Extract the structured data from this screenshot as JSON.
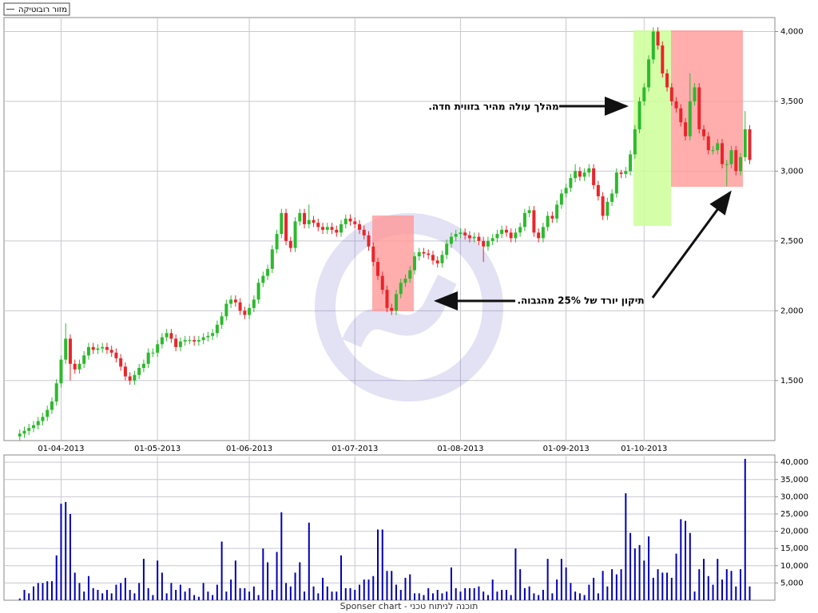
{
  "chart_data": [
    {
      "type": "candlestick",
      "name": "מזור רובוטיקה",
      "up_color": "#2db92d",
      "down_color": "#e8262b",
      "xlim": [
        -1,
        161
      ],
      "xticks": [
        {
          "value": 9,
          "label": "01-04-2013"
        },
        {
          "value": 30,
          "label": "01-05-2013"
        },
        {
          "value": 50,
          "label": "01-06-2013"
        },
        {
          "value": 73,
          "label": "01-07-2013"
        },
        {
          "value": 96,
          "label": "01-08-2013"
        },
        {
          "value": 119,
          "label": "01-09-2013"
        },
        {
          "value": 136,
          "label": "01-10-2013"
        }
      ],
      "ylim": [
        1070,
        4100
      ],
      "yticks": [
        {
          "value": 1500,
          "label": "1,500"
        },
        {
          "value": 2000,
          "label": "2,000"
        },
        {
          "value": 2500,
          "label": "2,500"
        },
        {
          "value": 3000,
          "label": "3,000"
        },
        {
          "value": 3500,
          "label": "3,500"
        },
        {
          "value": 4000,
          "label": "4,000"
        }
      ],
      "grid": true,
      "annotations": [
        "מהלך עולה מהיר בזווית חדה.",
        "תיקון יורד של 25% מהגבוה."
      ],
      "open": [
        1100,
        1120,
        1140,
        1160,
        1180,
        1210,
        1240,
        1290,
        1350,
        1480,
        1650,
        1800,
        1620,
        1580,
        1620,
        1680,
        1740,
        1720,
        1730,
        1740,
        1720,
        1700,
        1660,
        1600,
        1530,
        1500,
        1540,
        1590,
        1620,
        1700,
        1700,
        1760,
        1810,
        1840,
        1800,
        1740,
        1780,
        1790,
        1790,
        1780,
        1790,
        1810,
        1820,
        1840,
        1900,
        1960,
        2050,
        2080,
        2060,
        2000,
        1970,
        2020,
        2080,
        2200,
        2250,
        2300,
        2440,
        2550,
        2700,
        2500,
        2450,
        2640,
        2700,
        2620,
        2650,
        2630,
        2600,
        2580,
        2600,
        2580,
        2560,
        2620,
        2660,
        2640,
        2620,
        2580,
        2540,
        2460,
        2350,
        2250,
        2150,
        2020,
        2000,
        2120,
        2200,
        2230,
        2290,
        2390,
        2420,
        2410,
        2400,
        2360,
        2340,
        2400,
        2480,
        2530,
        2550,
        2560,
        2540,
        2520,
        2530,
        2500,
        2460,
        2500,
        2520,
        2550,
        2580,
        2560,
        2520,
        2560,
        2600,
        2700,
        2720,
        2560,
        2520,
        2600,
        2680,
        2660,
        2760,
        2840,
        2880,
        2950,
        3000,
        2960,
        2990,
        3020,
        2900,
        2820,
        2680,
        2780,
        2840,
        2990,
        2980,
        3000,
        3120,
        3300,
        3500,
        3600,
        3800,
        4000,
        3900,
        3700,
        3600,
        3500,
        3450,
        3350,
        3250,
        3500,
        3600,
        3300,
        3250,
        3150,
        3150,
        3200,
        3050,
        3050,
        3150,
        3000,
        3100,
        3300
      ],
      "high": [
        1150,
        1170,
        1190,
        1210,
        1240,
        1270,
        1320,
        1380,
        1510,
        1680,
        1910,
        1830,
        1650,
        1650,
        1710,
        1770,
        1770,
        1760,
        1770,
        1770,
        1750,
        1730,
        1690,
        1630,
        1560,
        1570,
        1620,
        1650,
        1730,
        1730,
        1790,
        1840,
        1870,
        1870,
        1830,
        1810,
        1820,
        1820,
        1820,
        1820,
        1840,
        1850,
        1870,
        1930,
        1990,
        2080,
        2110,
        2110,
        2090,
        2030,
        2050,
        2110,
        2230,
        2280,
        2330,
        2470,
        2580,
        2730,
        2730,
        2530,
        2670,
        2730,
        2730,
        2760,
        2680,
        2660,
        2630,
        2630,
        2630,
        2610,
        2650,
        2690,
        2690,
        2670,
        2650,
        2610,
        2570,
        2490,
        2380,
        2280,
        2180,
        2050,
        2150,
        2230,
        2260,
        2320,
        2420,
        2450,
        2450,
        2440,
        2430,
        2390,
        2430,
        2510,
        2560,
        2580,
        2590,
        2590,
        2570,
        2560,
        2560,
        2530,
        2530,
        2550,
        2580,
        2610,
        2610,
        2590,
        2590,
        2630,
        2730,
        2750,
        2750,
        2590,
        2630,
        2710,
        2710,
        2790,
        2870,
        2910,
        2980,
        3050,
        3030,
        3020,
        3050,
        3050,
        2930,
        2850,
        2810,
        2870,
        3020,
        3010,
        3030,
        3150,
        3330,
        3530,
        3630,
        3830,
        4030,
        4030,
        3930,
        3730,
        3630,
        3530,
        3480,
        3380,
        3700,
        3630,
        3630,
        3330,
        3280,
        3180,
        3230,
        3230,
        3080,
        3180,
        3180,
        3130,
        3430,
        3330
      ],
      "low": [
        1070,
        1090,
        1110,
        1130,
        1150,
        1180,
        1210,
        1260,
        1320,
        1450,
        1620,
        1500,
        1550,
        1550,
        1590,
        1650,
        1690,
        1690,
        1700,
        1690,
        1670,
        1630,
        1570,
        1500,
        1470,
        1470,
        1510,
        1560,
        1590,
        1670,
        1670,
        1730,
        1780,
        1770,
        1710,
        1710,
        1750,
        1760,
        1750,
        1750,
        1760,
        1780,
        1790,
        1810,
        1870,
        1930,
        2020,
        2030,
        1970,
        1940,
        1940,
        1990,
        2050,
        2170,
        2220,
        2270,
        2410,
        2520,
        2470,
        2420,
        2420,
        2610,
        2590,
        2590,
        2600,
        2570,
        2550,
        2550,
        2550,
        2530,
        2530,
        2590,
        2610,
        2590,
        2550,
        2510,
        2430,
        2320,
        2220,
        2120,
        1990,
        1970,
        1970,
        2090,
        2170,
        2200,
        2260,
        2360,
        2380,
        2370,
        2330,
        2310,
        2310,
        2370,
        2450,
        2500,
        2520,
        2510,
        2490,
        2490,
        2470,
        2350,
        2430,
        2470,
        2490,
        2520,
        2530,
        2490,
        2490,
        2530,
        2570,
        2670,
        2530,
        2490,
        2490,
        2570,
        2630,
        2630,
        2730,
        2810,
        2850,
        2920,
        2930,
        2930,
        2960,
        2870,
        2790,
        2650,
        2650,
        2750,
        2810,
        2950,
        2950,
        2970,
        3090,
        3270,
        3470,
        3570,
        3770,
        3870,
        3670,
        3570,
        3470,
        3420,
        3320,
        3220,
        3220,
        3470,
        3270,
        3220,
        3120,
        3120,
        3120,
        3020,
        2890,
        3020,
        2970,
        2970,
        3070,
        3050
      ],
      "close": [
        1120,
        1140,
        1160,
        1180,
        1210,
        1240,
        1290,
        1350,
        1480,
        1650,
        1800,
        1620,
        1580,
        1620,
        1680,
        1740,
        1720,
        1730,
        1740,
        1720,
        1700,
        1660,
        1600,
        1530,
        1500,
        1540,
        1590,
        1620,
        1700,
        1700,
        1760,
        1810,
        1840,
        1800,
        1740,
        1780,
        1790,
        1790,
        1780,
        1790,
        1810,
        1820,
        1840,
        1900,
        1960,
        2050,
        2080,
        2060,
        2000,
        1970,
        2020,
        2080,
        2200,
        2250,
        2300,
        2440,
        2550,
        2700,
        2500,
        2450,
        2640,
        2700,
        2620,
        2650,
        2630,
        2600,
        2580,
        2600,
        2580,
        2560,
        2620,
        2660,
        2640,
        2620,
        2580,
        2540,
        2460,
        2350,
        2250,
        2150,
        2020,
        2000,
        2120,
        2200,
        2230,
        2290,
        2390,
        2420,
        2410,
        2400,
        2360,
        2340,
        2400,
        2480,
        2530,
        2550,
        2560,
        2540,
        2520,
        2530,
        2500,
        2460,
        2500,
        2520,
        2550,
        2580,
        2560,
        2520,
        2560,
        2600,
        2700,
        2720,
        2560,
        2520,
        2600,
        2680,
        2660,
        2760,
        2840,
        2880,
        2950,
        3000,
        2960,
        2990,
        3020,
        2900,
        2820,
        2680,
        2780,
        2840,
        2990,
        2980,
        3000,
        3120,
        3300,
        3500,
        3600,
        3800,
        4000,
        3900,
        3700,
        3600,
        3500,
        3450,
        3350,
        3250,
        3500,
        3600,
        3300,
        3250,
        3150,
        3150,
        3200,
        3050,
        3050,
        3150,
        3000,
        3100,
        3300,
        3080
      ]
    },
    {
      "type": "bar",
      "color": "#0000b4",
      "ylim": [
        0,
        42000
      ],
      "yticks": [
        {
          "value": 5000,
          "label": "5,000"
        },
        {
          "value": 10000,
          "label": "10,000"
        },
        {
          "value": 15000,
          "label": "15,000"
        },
        {
          "value": 20000,
          "label": "20,000"
        },
        {
          "value": 25000,
          "label": "25,000"
        },
        {
          "value": 30000,
          "label": "30,000"
        },
        {
          "value": 35000,
          "label": "35,000"
        },
        {
          "value": 40000,
          "label": "40,000"
        }
      ],
      "values": [
        500,
        3000,
        2000,
        4000,
        5000,
        5000,
        5500,
        5500,
        13000,
        28000,
        28500,
        25000,
        8000,
        5000,
        2500,
        7000,
        3500,
        3000,
        2000,
        3000,
        2000,
        4500,
        5000,
        6500,
        3000,
        2000,
        5000,
        12000,
        3500,
        1500,
        11500,
        8000,
        2000,
        5000,
        3000,
        4500,
        2500,
        3500,
        1500,
        1000,
        5000,
        2500,
        1500,
        4500,
        17000,
        2500,
        6000,
        11500,
        3500,
        3500,
        2500,
        4000,
        1500,
        15000,
        11000,
        3000,
        14000,
        25500,
        5000,
        4000,
        8000,
        11000,
        2500,
        22500,
        4000,
        2000,
        6500,
        4000,
        2500,
        2500,
        13000,
        3500,
        3500,
        3000,
        4500,
        6000,
        6000,
        7000,
        20500,
        20500,
        8500,
        8500,
        4500,
        3000,
        6500,
        7500,
        2000,
        2000,
        1500,
        3500,
        2000,
        3000,
        2000,
        2500,
        9500,
        3500,
        2500,
        3500,
        3500,
        3500,
        4000,
        2500,
        1500,
        6000,
        2500,
        3000,
        3000,
        1500,
        15000,
        9000,
        3500,
        4000,
        2000,
        1500,
        3000,
        12000,
        2000,
        6000,
        12000,
        9500,
        5000,
        2500,
        2000,
        1500,
        4500,
        6500,
        2000,
        8500,
        4000,
        9000,
        7500,
        9000,
        31000,
        19500,
        15000,
        16000,
        11500,
        18500,
        6500,
        9000,
        8000,
        8000,
        6500,
        13500,
        23500,
        23000,
        19500,
        2500,
        9000,
        12000,
        7000,
        4500,
        12000,
        6000,
        9000,
        8500,
        4000,
        9000,
        41000,
        4000
      ]
    }
  ],
  "footer": "Sponser chart - תוכנה לניתוח טכני"
}
